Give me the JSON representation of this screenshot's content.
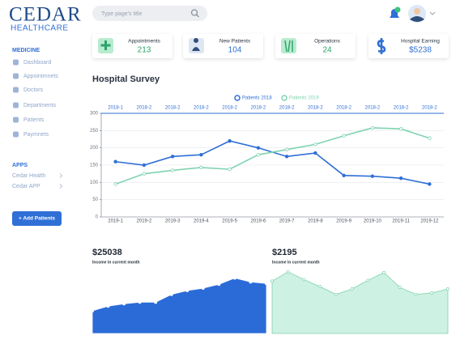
{
  "header": {
    "logo_title": "CEDAR",
    "logo_subtitle": "HEALTHCARE",
    "search_placeholder": "Type page's title"
  },
  "sidebar": {
    "section": "MEDICINE",
    "items": [
      "Dashboard",
      "Appointmnets",
      "Doctors",
      "Departments",
      "Patients",
      "Paymnets"
    ],
    "apps_section": "APPS",
    "apps": [
      "Cedar Health",
      "Cedar APP"
    ],
    "button": "+ Add Patients"
  },
  "stats": [
    {
      "label": "Appointments",
      "value": 213,
      "color": "#2ea36b"
    },
    {
      "label": "New Patients",
      "value": 104,
      "color": "#2f6fd6"
    },
    {
      "label": "Operations",
      "value": 24,
      "color": "#2ea36b"
    },
    {
      "label": "Hospital Earning",
      "value": "$5238",
      "color": "#2f6fd6"
    }
  ],
  "survey": {
    "type": "line",
    "title": "Hospital Survey",
    "top_labels": [
      "2018-1",
      "2018-2",
      "2018-2",
      "2018-2",
      "2018-2",
      "2018-2",
      "2018-2",
      "2018-2",
      "2018-2",
      "2018-2",
      "2018-2",
      "2018-2"
    ],
    "categories": [
      "2019-1",
      "2019-2",
      "2019-3",
      "2019-4",
      "2019-5",
      "2019-6",
      "2019-7",
      "2019-8",
      "2019-9",
      "2019-10",
      "2019-11",
      "2019-12"
    ],
    "series": [
      {
        "name": "Patients 2018",
        "color": "#2f6fd6",
        "values": [
          160,
          150,
          175,
          180,
          220,
          200,
          175,
          185,
          120,
          118,
          112,
          95
        ]
      },
      {
        "name": "Patients 2019",
        "color": "#7fd3b0",
        "values": [
          95,
          125,
          135,
          143,
          138,
          180,
          195,
          210,
          235,
          258,
          255,
          228
        ]
      }
    ],
    "ylim": [
      0,
      300
    ],
    "yticks": [
      0,
      50,
      100,
      150,
      200,
      250,
      300
    ],
    "grid": true
  },
  "income": [
    {
      "type": "area",
      "value": "$25038",
      "caption": "Income in current month",
      "color": "#2a6bd8",
      "marker": "#ffffff",
      "values": [
        29,
        35,
        38,
        40,
        40,
        50,
        55,
        58,
        63,
        71,
        66,
        64
      ],
      "ylim": [
        0,
        85
      ]
    },
    {
      "type": "area",
      "value": "$2195",
      "caption": "Income in current month",
      "color": "#cdf1e2",
      "marker": "#7fd3b0",
      "values": [
        67,
        79,
        69,
        60,
        50,
        57,
        68,
        78,
        59,
        50,
        52,
        57
      ],
      "ylim": [
        0,
        85
      ]
    }
  ]
}
